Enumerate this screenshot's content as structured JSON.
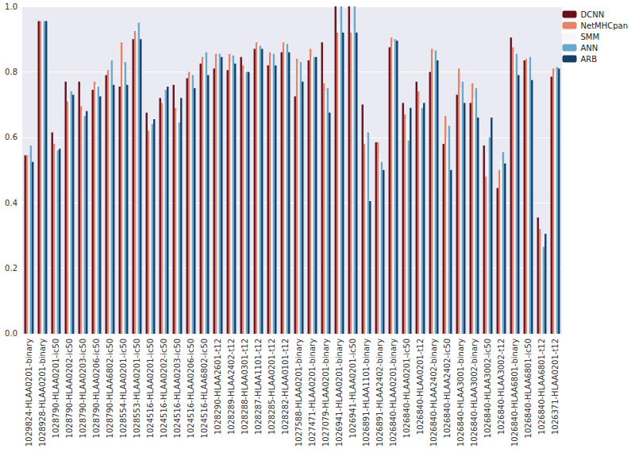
{
  "chart_data": {
    "type": "bar",
    "categories": [
      "1029824-HLAA0201-binary",
      "1028928-HLAA0201-binary",
      "1028790-HLAA0201-ic50",
      "1028790-HLAA0202-ic50",
      "1028790-HLAA0203-ic50",
      "1028790-HLAA0206-ic50",
      "1028790-HLAA6802-ic50",
      "1028554-HLAA0201-ic50",
      "1028553-HLAA0201-ic50",
      "1024516-HLAA0201-ic50",
      "1024516-HLAA0202-ic50",
      "1024516-HLAA0203-ic50",
      "1024516-HLAA0206-ic50",
      "1024516-HLAA6802-ic50",
      "1028290-HLAA2601-t12",
      "1028289-HLAA2402-t12",
      "1028288-HLAA0301-t12",
      "1028287-HLAA1101-t12",
      "1028285-HLAA0201-t12",
      "1028282-HLAA0101-t12",
      "1027588-HLAA0201-binary",
      "1027471-HLAA0201-binary",
      "1027079-HLAA0201-binary",
      "1026941-HLAA0201-binary",
      "1026941-HLAA0201-ic50",
      "1026891-HLAA1101-binary",
      "1026891-HLAA2402-binary",
      "1026840-HLAA0201-binary",
      "1026840-HLAA0201-ic50",
      "1026840-HLAA0201-t12",
      "1026840-HLAA2402-binary",
      "1026840-HLAA2402-ic50",
      "1026840-HLAA3001-binary",
      "1026840-HLAA3002-binary",
      "1026840-HLAA3002-ic50",
      "1026840-HLAA3002-t12",
      "1026840-HLAA6801-binary",
      "1026840-HLAA6801-ic50",
      "1026840-HLAA6801-t12",
      "1026371-HLAA0201-t12"
    ],
    "series": [
      {
        "name": "DCNN",
        "color": "#6b0f1a",
        "values": [
          0.545,
          0.955,
          0.615,
          0.77,
          0.77,
          0.745,
          0.79,
          0.755,
          0.9,
          0.675,
          0.72,
          0.76,
          0.78,
          0.825,
          0.81,
          0.805,
          0.845,
          0.87,
          0.82,
          0.86,
          0.725,
          0.835,
          0.89,
          1.0,
          1.0,
          0.7,
          0.585,
          0.875,
          0.705,
          0.77,
          0.8,
          0.58,
          0.73,
          0.705,
          0.575,
          0.445,
          0.905,
          0.835,
          0.355,
          0.785
        ]
      },
      {
        "name": "NetMHCpan",
        "color": "#e8836a",
        "values": [
          0.545,
          0.955,
          0.58,
          0.71,
          0.695,
          0.77,
          0.805,
          0.89,
          0.925,
          0.62,
          0.705,
          0.69,
          0.8,
          0.845,
          0.855,
          0.855,
          0.82,
          0.89,
          0.86,
          0.89,
          0.84,
          0.87,
          0.765,
          0.92,
          0.92,
          0.58,
          0.585,
          0.905,
          0.67,
          0.74,
          0.87,
          0.665,
          0.81,
          0.765,
          0.48,
          0.5,
          0.875,
          0.84,
          0.32,
          0.81
        ]
      },
      {
        "name": "SMM",
        "color": "#f7f7f7",
        "values": [
          0.54,
          0.955,
          0.565,
          0.72,
          0.68,
          0.76,
          0.8,
          0.82,
          0.93,
          0.64,
          0.71,
          0.68,
          0.79,
          0.84,
          0.85,
          0.83,
          0.81,
          0.885,
          0.85,
          0.885,
          0.83,
          0.845,
          0.74,
          0.95,
          0.93,
          0.6,
          0.55,
          0.89,
          0.655,
          0.7,
          0.86,
          0.6,
          0.75,
          0.72,
          0.55,
          0.53,
          0.86,
          0.845,
          0.28,
          0.8
        ]
      },
      {
        "name": "ANN",
        "color": "#67a9cf",
        "values": [
          0.575,
          0.955,
          0.56,
          0.74,
          0.665,
          0.755,
          0.835,
          0.83,
          0.95,
          0.64,
          0.745,
          0.645,
          0.79,
          0.86,
          0.855,
          0.85,
          0.8,
          0.88,
          0.855,
          0.885,
          0.83,
          0.845,
          0.75,
          1.0,
          1.0,
          0.615,
          0.525,
          0.9,
          0.59,
          0.69,
          0.865,
          0.635,
          0.77,
          0.75,
          0.6,
          0.555,
          0.855,
          0.845,
          0.265,
          0.815
        ]
      },
      {
        "name": "ARB",
        "color": "#163e6b",
        "values": [
          0.525,
          0.955,
          0.565,
          0.73,
          0.68,
          0.725,
          0.76,
          0.76,
          0.9,
          0.655,
          0.755,
          0.72,
          0.75,
          0.79,
          0.845,
          0.825,
          0.8,
          0.87,
          0.82,
          0.86,
          0.77,
          0.845,
          0.675,
          0.92,
          0.92,
          0.405,
          0.5,
          0.895,
          0.69,
          0.705,
          0.835,
          0.5,
          0.705,
          0.66,
          0.66,
          0.52,
          0.79,
          0.775,
          0.305,
          0.81
        ]
      }
    ],
    "ylim": [
      0,
      1
    ],
    "yticks": [
      {
        "value": 0,
        "label": "0.0"
      },
      0.2,
      0.4,
      0.6,
      0.8,
      {
        "value": 1,
        "label": "1.0"
      }
    ],
    "grid": true,
    "legend": "top-right"
  }
}
